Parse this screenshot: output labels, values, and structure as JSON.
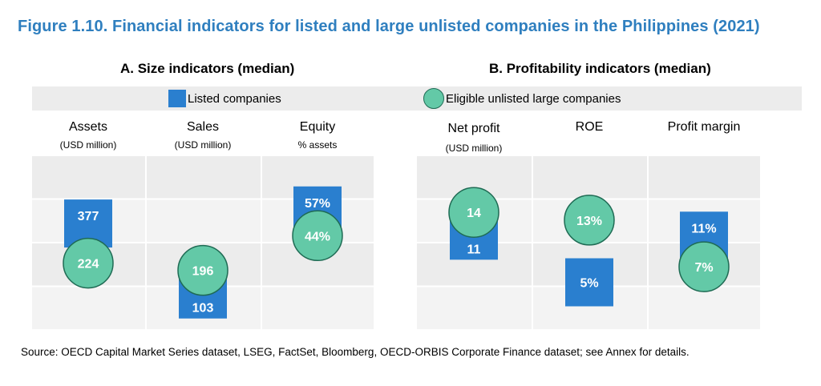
{
  "title": "Figure 1.10. Financial indicators for listed and large unlisted companies in the Philippines (2021)",
  "panel_a_title": "A.  Size indicators (median)",
  "panel_b_title": "B.  Profitability indicators (median)",
  "source": "Source: OECD Capital Market Series dataset, LSEG, FactSet, Bloomberg, OECD-ORBIS Corporate Finance dataset; see Annex for details.",
  "colors": {
    "listed": "#2a7fcf",
    "unlisted": "#63c9a7",
    "unlisted_border": "#1f6b54",
    "panel_bg": "#ececec",
    "title": "#2f7fbf"
  },
  "chart_data": {
    "type": "scatter",
    "legend": {
      "placement": "top",
      "entries": [
        "Listed companies",
        "Eligible unlisted large companies"
      ]
    },
    "series": [
      {
        "name": "Listed companies",
        "marker": "square",
        "values": [
          377,
          103,
          57,
          11,
          5,
          11
        ],
        "labels": [
          "377",
          "103",
          "57%",
          "11",
          "5%",
          "11%"
        ]
      },
      {
        "name": "Eligible unlisted large companies",
        "marker": "circle",
        "values": [
          224,
          196,
          44,
          14,
          13,
          7
        ],
        "labels": [
          "224",
          "196",
          "44%",
          "14",
          "13%",
          "7%"
        ]
      }
    ],
    "panels": [
      {
        "title": "A.  Size indicators (median)",
        "categories": [
          {
            "label": "Assets",
            "unit": "(USD million)"
          },
          {
            "label": "Sales",
            "unit": "(USD million)"
          },
          {
            "label": "Equity",
            "unit": "% assets"
          }
        ]
      },
      {
        "title": "B.  Profitability indicators (median)",
        "categories": [
          {
            "label": "Net profit",
            "unit": "(USD million)"
          },
          {
            "label": "ROE",
            "unit": ""
          },
          {
            "label": "Profit margin",
            "unit": ""
          }
        ]
      }
    ]
  }
}
